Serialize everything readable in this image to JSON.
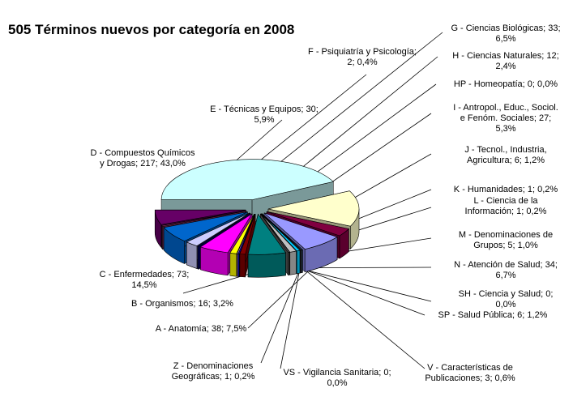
{
  "chart_data": {
    "type": "pie",
    "style": "3d-exploded",
    "title": "505 Términos nuevos por categoría en 2008",
    "legend": "none",
    "slices": [
      {
        "id": "D",
        "lines": [
          "D - Compuestos Químicos",
          "y Drogas; 217; 43,0%"
        ],
        "value": 217,
        "percent": 43.0,
        "color": "#ccffff"
      },
      {
        "id": "C",
        "lines": [
          "C - Enfermedades; 73;",
          "14,5%"
        ],
        "value": 73,
        "percent": 14.5,
        "color": "#ffffcc"
      },
      {
        "id": "B",
        "lines": [
          "B - Organismos; 16; 3,2%"
        ],
        "value": 16,
        "percent": 3.2,
        "color": "#800040"
      },
      {
        "id": "A",
        "lines": [
          "A - Anatomía; 38; 7,5%"
        ],
        "value": 38,
        "percent": 7.5,
        "color": "#9999ff"
      },
      {
        "id": "Z",
        "lines": [
          "Z - Denominaciones",
          "Geográficas; 1; 0,2%"
        ],
        "value": 1,
        "percent": 0.2,
        "color": "#4a6fa5"
      },
      {
        "id": "VS",
        "lines": [
          "VS - Vigilancia Sanitaria; 0;",
          "0,0%"
        ],
        "value": 0,
        "percent": 0.0,
        "color": "#333333"
      },
      {
        "id": "V",
        "lines": [
          "V - Características de",
          "Publicaciones; 3; 0,6%"
        ],
        "value": 3,
        "percent": 0.6,
        "color": "#00ccff"
      },
      {
        "id": "SP",
        "lines": [
          "SP - Salud Pública; 6; 1,2%"
        ],
        "value": 6,
        "percent": 1.2,
        "color": "#c0c0c0"
      },
      {
        "id": "SH",
        "lines": [
          "SH - Ciencia y Salud; 0;",
          "0,0%"
        ],
        "value": 0,
        "percent": 0.0,
        "color": "#666666"
      },
      {
        "id": "N",
        "lines": [
          "N - Atención de Salud; 34;",
          "6,7%"
        ],
        "value": 34,
        "percent": 6.7,
        "color": "#008080"
      },
      {
        "id": "M",
        "lines": [
          "M - Denominaciones de",
          "Grupos; 5; 1,0%"
        ],
        "value": 5,
        "percent": 1.0,
        "color": "#800000"
      },
      {
        "id": "L",
        "lines": [
          "L - Ciencia de la",
          "Información; 1; 0,2%"
        ],
        "value": 1,
        "percent": 0.2,
        "color": "#0000ff"
      },
      {
        "id": "K",
        "lines": [
          "K - Humanidades; 1; 0,2%"
        ],
        "value": 1,
        "percent": 0.2,
        "color": "#cc99ff"
      },
      {
        "id": "J",
        "lines": [
          "J - Tecnol., Industria,",
          "Agricultura; 6; 1,2%"
        ],
        "value": 6,
        "percent": 1.2,
        "color": "#ffff00"
      },
      {
        "id": "I",
        "lines": [
          "I - Antropol., Educ., Sociol.",
          "e Fenóm. Sociales; 27;",
          "5,3%"
        ],
        "value": 27,
        "percent": 5.3,
        "color": "#ff00ff"
      },
      {
        "id": "HP",
        "lines": [
          "HP - Homeopatía; 0; 0,0%"
        ],
        "value": 0,
        "percent": 0.0,
        "color": "#000080"
      },
      {
        "id": "H",
        "lines": [
          "H - Ciencias Naturales; 12;",
          "2,4%"
        ],
        "value": 12,
        "percent": 2.4,
        "color": "#ccccff"
      },
      {
        "id": "G",
        "lines": [
          "G - Ciencias Biológicas; 33;",
          "6,5%"
        ],
        "value": 33,
        "percent": 6.5,
        "color": "#0066cc"
      },
      {
        "id": "F",
        "lines": [
          "F - Psiquiatría y Psicología;",
          "2; 0,4%"
        ],
        "value": 2,
        "percent": 0.4,
        "color": "#993366"
      },
      {
        "id": "E",
        "lines": [
          "E - Técnicas y Equipos; 30;",
          "5,9%"
        ],
        "value": 30,
        "percent": 5.9,
        "color": "#660066"
      }
    ]
  }
}
